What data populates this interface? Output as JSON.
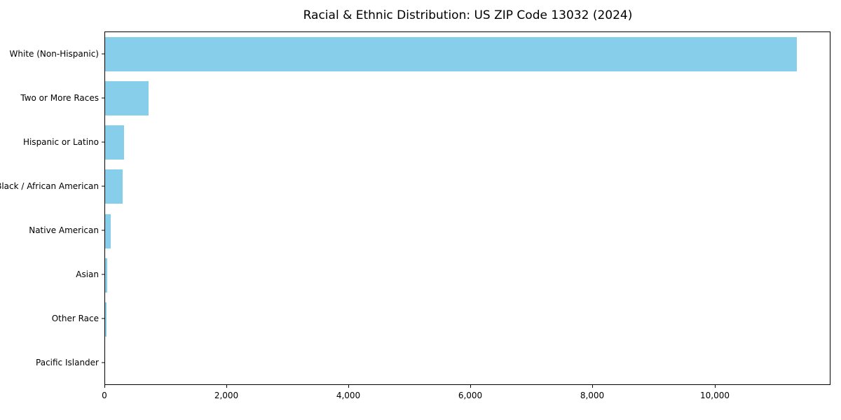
{
  "chart_data": {
    "type": "bar",
    "orientation": "horizontal",
    "title": "Racial & Ethnic Distribution: US ZIP Code 13032 (2024)",
    "categories": [
      "White (Non-Hispanic)",
      "Two or More Races",
      "Hispanic or Latino",
      "Black / African American",
      "Native American",
      "Asian",
      "Other Race",
      "Pacific Islander"
    ],
    "values": [
      11335,
      715,
      305,
      290,
      95,
      30,
      28,
      4
    ],
    "xlabel": "",
    "ylabel": "",
    "xlim": [
      0,
      11900
    ],
    "xticks": [
      0,
      2000,
      4000,
      6000,
      8000,
      10000
    ],
    "xtick_labels": [
      "0",
      "2,000",
      "4,000",
      "6,000",
      "8,000",
      "10,000"
    ],
    "bar_color": "#87CEEB",
    "grid": false,
    "legend": null
  }
}
